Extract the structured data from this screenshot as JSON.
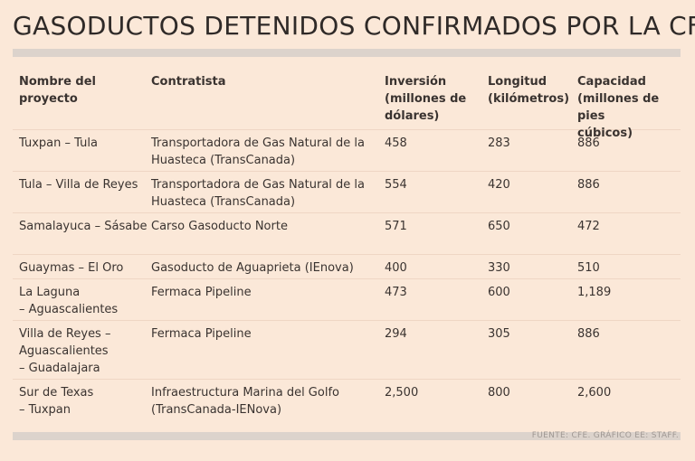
{
  "title": "GASODUCTOS DETENIDOS CONFIRMADOS POR LA CFE:",
  "headers": [
    "Nombre del\nproyecto",
    "Contratista",
    "Inversión\n(millones de\ndólares)",
    "Longitud\n(kilómetros)",
    "Capacidad\n(millones de pies\ncúbicos)"
  ],
  "rows": [
    [
      "Tuxpan – Tula",
      "Transportadora de Gas Natural de la\nHuasteca (TransCanada)",
      "458",
      "283",
      "886"
    ],
    [
      "Tula – Villa de Reyes",
      "Transportadora de Gas Natural de la\nHuasteca (TransCanada)",
      "554",
      "420",
      "886"
    ],
    [
      "Samalayuca – Sásabe",
      "Carso Gasoducto Norte",
      "571",
      "650",
      "472"
    ],
    [
      "Guaymas – El Oro",
      "Gasoducto de Aguaprieta (IEnova)",
      "400",
      "330",
      "510"
    ],
    [
      "La Laguna\n– Aguascalientes",
      "Fermaca Pipeline",
      "473",
      "600",
      "1,189"
    ],
    [
      "Villa de Reyes –\nAguascalientes\n– Guadalajara",
      "Fermaca Pipeline",
      "294",
      "305",
      "886"
    ],
    [
      "Sur de Texas\n– Tuxpan",
      "Infraestructura Marina del Golfo\n(TransCanada-IENova)",
      "2,500",
      "800",
      "2,600"
    ]
  ],
  "source": "FUENTE: CFE. GRÁFICO EE: STAFF."
}
